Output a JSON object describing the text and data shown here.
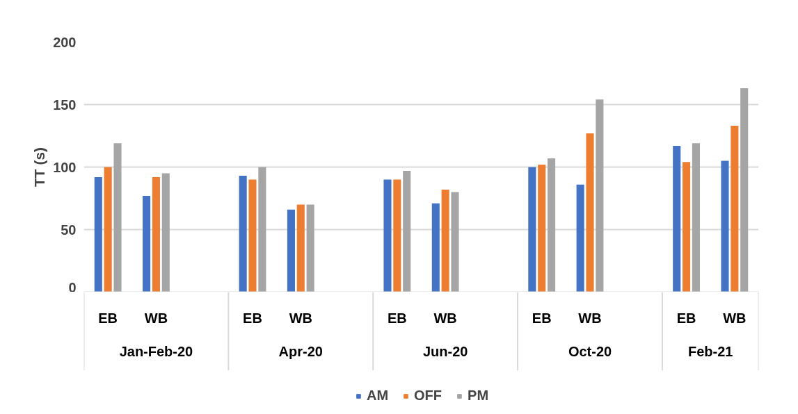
{
  "chart_data": {
    "type": "bar",
    "ylabel": "TT (s)",
    "categories": [
      "EB",
      "WB",
      "EB",
      "WB",
      "EB",
      "WB",
      "EB",
      "WB",
      "EB",
      "WB"
    ],
    "annotations": [
      "Jan-Feb-20",
      "Apr-20",
      "Jun-20",
      "Oct-20",
      "Feb-21"
    ],
    "series": [
      {
        "name": "AM",
        "color": "#4472c4",
        "values": [
          92,
          77,
          93,
          66,
          90,
          71,
          100,
          86,
          117,
          105
        ]
      },
      {
        "name": "OFF",
        "color": "#ed7d31",
        "values": [
          100,
          92,
          90,
          70,
          90,
          82,
          102,
          127,
          104,
          133
        ]
      },
      {
        "name": "PM",
        "color": "#a5a5a5",
        "values": [
          119,
          95,
          100,
          70,
          97,
          80,
          107,
          154,
          119,
          163
        ]
      }
    ],
    "ylim": [
      0,
      200
    ],
    "yticks": [
      0,
      50,
      100,
      150,
      200
    ],
    "grid": "y",
    "legend": "bottom"
  }
}
